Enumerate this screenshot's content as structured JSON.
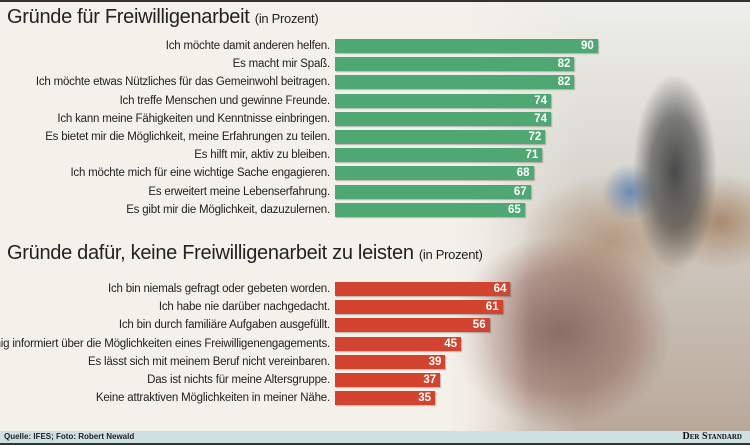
{
  "chart_data": [
    {
      "type": "bar",
      "orientation": "horizontal",
      "title": "Gründe für Freiwilligenarbeit",
      "unit": "(in Prozent)",
      "color": "#4fa874",
      "categories": [
        "Ich möchte damit anderen helfen.",
        "Es macht mir Spaß.",
        "Ich möchte etwas Nützliches für das Gemeinwohl beitragen.",
        "Ich treffe Menschen und gewinne Freunde.",
        "Ich kann meine Fähigkeiten und Kenntnisse einbringen.",
        "Es bietet mir die Möglichkeit, meine Erfahrungen zu teilen.",
        "Es hilft mir, aktiv zu bleiben.",
        "Ich möchte mich für eine wichtige Sache engagieren.",
        "Es erweitert meine Lebenserfahrung.",
        "Es gibt mir die Möglichkeit, dazuzulernen."
      ],
      "values": [
        90,
        82,
        82,
        74,
        74,
        72,
        71,
        68,
        67,
        65
      ]
    },
    {
      "type": "bar",
      "orientation": "horizontal",
      "title": "Gründe dafür, keine Freiwilligenarbeit zu leisten",
      "unit": "(in Prozent)",
      "color": "#d2442f",
      "categories": [
        "Ich bin niemals gefragt oder gebeten worden.",
        "Ich habe nie darüber nachgedacht.",
        "Ich bin durch familiäre Aufgaben ausgefüllt.",
        "Zu wenig informiert über die Möglichkeiten eines Freiwilligenengagements.",
        "Es lässt sich mit meinem Beruf nicht vereinbaren.",
        "Das ist nichts für meine Altersgruppe.",
        "Keine attraktiven Möglichkeiten in meiner Nähe."
      ],
      "values": [
        64,
        61,
        56,
        45,
        39,
        37,
        35
      ]
    }
  ],
  "footer": {
    "source": "Quelle: IFES; Foto: Robert Newald",
    "logo": "Der Standard"
  }
}
